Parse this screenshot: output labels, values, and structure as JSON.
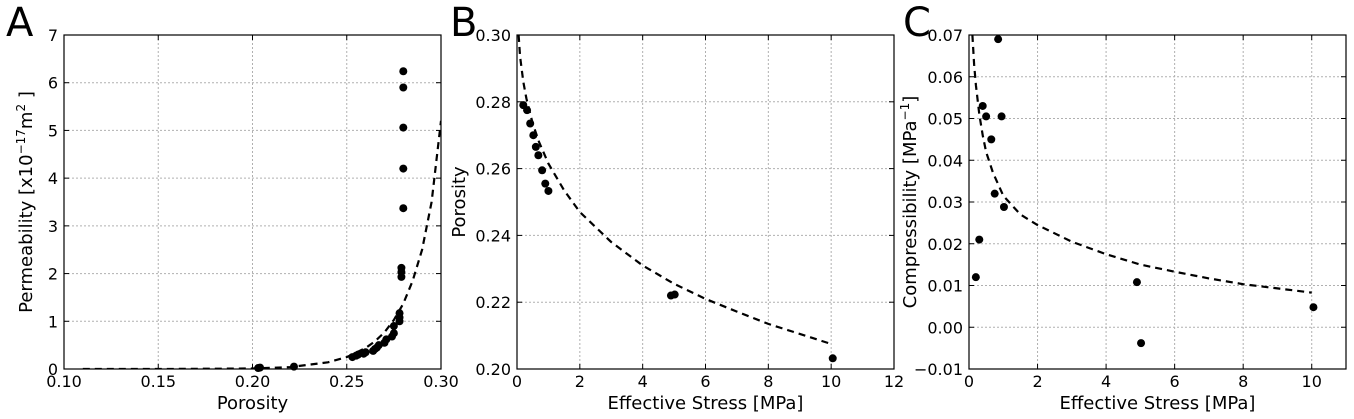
{
  "chart_data": [
    {
      "type": "scatter",
      "panel_label": "A",
      "xlabel": "Porosity",
      "ylabel": "Permeability [x10<sup>−17</sup>m<sup>2</sup> ]",
      "xlim": [
        0.1,
        0.3
      ],
      "ylim": [
        0,
        7
      ],
      "xticks": [
        0.1,
        0.15,
        0.2,
        0.25,
        0.3
      ],
      "xtick_labels": [
        "0.10",
        "0.15",
        "0.20",
        "0.25",
        "0.30"
      ],
      "yticks": [
        0,
        1,
        2,
        3,
        4,
        5,
        6,
        7
      ],
      "ytick_labels": [
        "0",
        "1",
        "2",
        "3",
        "4",
        "5",
        "6",
        "7"
      ],
      "grid": true,
      "points": [
        {
          "x": 0.203,
          "y": 0.02
        },
        {
          "x": 0.204,
          "y": 0.03
        },
        {
          "x": 0.222,
          "y": 0.05
        },
        {
          "x": 0.253,
          "y": 0.25
        },
        {
          "x": 0.255,
          "y": 0.28
        },
        {
          "x": 0.256,
          "y": 0.3
        },
        {
          "x": 0.259,
          "y": 0.32
        },
        {
          "x": 0.26,
          "y": 0.35
        },
        {
          "x": 0.264,
          "y": 0.38
        },
        {
          "x": 0.265,
          "y": 0.42
        },
        {
          "x": 0.266,
          "y": 0.45
        },
        {
          "x": 0.267,
          "y": 0.5
        },
        {
          "x": 0.27,
          "y": 0.55
        },
        {
          "x": 0.271,
          "y": 0.62
        },
        {
          "x": 0.274,
          "y": 0.68
        },
        {
          "x": 0.275,
          "y": 0.75
        },
        {
          "x": 0.275,
          "y": 0.9
        },
        {
          "x": 0.278,
          "y": 1.0
        },
        {
          "x": 0.278,
          "y": 1.08
        },
        {
          "x": 0.278,
          "y": 1.17
        },
        {
          "x": 0.279,
          "y": 1.93
        },
        {
          "x": 0.279,
          "y": 2.03
        },
        {
          "x": 0.279,
          "y": 2.12
        },
        {
          "x": 0.28,
          "y": 3.37
        },
        {
          "x": 0.28,
          "y": 4.2
        },
        {
          "x": 0.28,
          "y": 5.06
        },
        {
          "x": 0.28,
          "y": 5.9
        },
        {
          "x": 0.28,
          "y": 6.24
        }
      ],
      "fit_line": {
        "x": [
          0.11,
          0.15,
          0.2,
          0.22,
          0.24,
          0.25,
          0.26,
          0.265,
          0.27,
          0.275,
          0.28,
          0.285,
          0.29,
          0.295,
          0.3
        ],
        "y": [
          0.0,
          0.0,
          0.01,
          0.04,
          0.14,
          0.25,
          0.44,
          0.58,
          0.77,
          1.03,
          1.37,
          1.85,
          2.5,
          3.5,
          5.2
        ]
      }
    },
    {
      "type": "scatter",
      "panel_label": "B",
      "xlabel": "Effective Stress [MPa]",
      "ylabel": "Porosity",
      "xlim": [
        0,
        12
      ],
      "ylim": [
        0.2,
        0.3
      ],
      "xticks": [
        0,
        2,
        4,
        6,
        8,
        10,
        12
      ],
      "xtick_labels": [
        "0",
        "2",
        "4",
        "6",
        "8",
        "10",
        "12"
      ],
      "yticks": [
        0.2,
        0.22,
        0.24,
        0.26,
        0.28,
        0.3
      ],
      "ytick_labels": [
        "0.20",
        "0.22",
        "0.24",
        "0.26",
        "0.28",
        "0.30"
      ],
      "grid": true,
      "points": [
        {
          "x": 0.2,
          "y": 0.279
        },
        {
          "x": 0.32,
          "y": 0.2775
        },
        {
          "x": 0.42,
          "y": 0.2735
        },
        {
          "x": 0.52,
          "y": 0.27
        },
        {
          "x": 0.6,
          "y": 0.2665
        },
        {
          "x": 0.68,
          "y": 0.264
        },
        {
          "x": 0.8,
          "y": 0.2595
        },
        {
          "x": 0.9,
          "y": 0.2555
        },
        {
          "x": 1.0,
          "y": 0.2533
        },
        {
          "x": 4.9,
          "y": 0.222
        },
        {
          "x": 5.02,
          "y": 0.2223
        },
        {
          "x": 10.05,
          "y": 0.2032
        }
      ],
      "fit_line": {
        "x": [
          0.05,
          0.1,
          0.2,
          0.3,
          0.5,
          0.7,
          1.0,
          1.5,
          2.0,
          3.0,
          4.0,
          5.0,
          6.0,
          7.0,
          8.0,
          9.0,
          10.0
        ],
        "y": [
          0.3,
          0.2935,
          0.286,
          0.281,
          0.2735,
          0.268,
          0.2615,
          0.2535,
          0.247,
          0.238,
          0.231,
          0.2255,
          0.221,
          0.2172,
          0.2135,
          0.2105,
          0.2075
        ]
      }
    },
    {
      "type": "scatter",
      "panel_label": "C",
      "xlabel": "Effective Stress [MPa]",
      "ylabel": "Compressibility [MPa<sup>−1</sup>]",
      "xlim": [
        0,
        11
      ],
      "ylim": [
        -0.01,
        0.07
      ],
      "xticks": [
        0,
        2,
        4,
        6,
        8,
        10
      ],
      "xtick_labels": [
        "0",
        "2",
        "4",
        "6",
        "8",
        "10"
      ],
      "yticks": [
        -0.01,
        0.0,
        0.01,
        0.02,
        0.03,
        0.04,
        0.05,
        0.06,
        0.07
      ],
      "ytick_labels": [
        "−0.01",
        "0.00",
        "0.01",
        "0.02",
        "0.03",
        "0.04",
        "0.05",
        "0.06",
        "0.07"
      ],
      "grid": true,
      "points": [
        {
          "x": 0.2,
          "y": 0.012
        },
        {
          "x": 0.3,
          "y": 0.021
        },
        {
          "x": 0.4,
          "y": 0.053
        },
        {
          "x": 0.5,
          "y": 0.0505
        },
        {
          "x": 0.65,
          "y": 0.045
        },
        {
          "x": 0.75,
          "y": 0.032
        },
        {
          "x": 0.85,
          "y": 0.069
        },
        {
          "x": 0.95,
          "y": 0.0505
        },
        {
          "x": 1.02,
          "y": 0.0288
        },
        {
          "x": 4.9,
          "y": 0.0108
        },
        {
          "x": 5.02,
          "y": -0.0038
        },
        {
          "x": 10.05,
          "y": 0.0048
        }
      ],
      "fit_line": {
        "x": [
          0.1,
          0.15,
          0.2,
          0.3,
          0.4,
          0.5,
          0.7,
          1.0,
          1.5,
          2.0,
          3.0,
          4.0,
          5.0,
          6.0,
          7.0,
          8.0,
          9.0,
          10.0
        ],
        "y": [
          0.07,
          0.063,
          0.058,
          0.051,
          0.046,
          0.042,
          0.037,
          0.0315,
          0.027,
          0.0245,
          0.0205,
          0.0175,
          0.015,
          0.0133,
          0.0117,
          0.0103,
          0.0093,
          0.0083
        ]
      }
    }
  ]
}
